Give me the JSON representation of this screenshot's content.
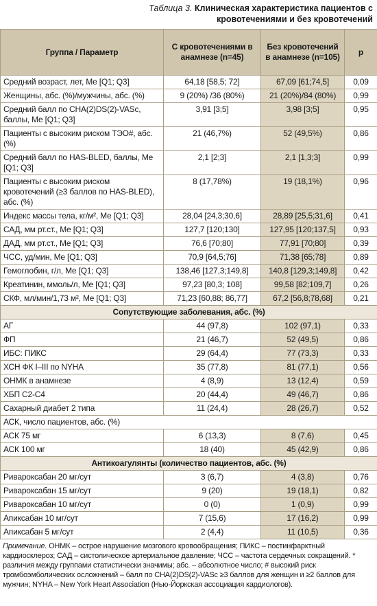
{
  "title": {
    "label": "Таблица 3.",
    "text": "Клиническая характеристика пациентов с кровотечениями и без кровотечений"
  },
  "table": {
    "header": [
      "Группа / Параметр",
      "С кровотечениями в анамнезе (n=45)",
      "Без кровотечений в анамнезе (n=105)",
      "p"
    ],
    "rows": [
      [
        "Средний возраст, лет, Me [Q1; Q3]",
        "64,18 [58,5; 72]",
        "67,09 [61;74,5]",
        "0,09"
      ],
      [
        "Женщины, абс. (%)/мужчины, абс. (%)",
        "9 (20%) /36 (80%)",
        "21 (20%)/84 (80%)",
        "0,99"
      ],
      [
        "Средний балл по CHA(2)DS(2)-VASc, баллы, Me [Q1; Q3]",
        "3,91 [3;5]",
        "3,98 [3;5]",
        "0,95"
      ],
      [
        "Пациенты с высоким риском ТЭО#, абс. (%)",
        "21 (46,7%)",
        "52 (49,5%)",
        "0,86"
      ],
      [
        "Средний балл по HAS-BLED, баллы, Me [Q1; Q3]",
        "2,1 [2;3]",
        "2,1 [1,3;3]",
        "0,99"
      ],
      [
        "Пациенты с высоким риском кровотечений (≥3 баллов по HAS-BLED), абс. (%)",
        "8 (17,78%)",
        "19 (18,1%)",
        "0,96"
      ],
      [
        "Индекс массы тела, кг/м², Me [Q1; Q3]",
        "28,04 [24,3;30,6]",
        "28,89 [25,5;31,6]",
        "0,41"
      ],
      [
        "САД, мм рт.ст., Me [Q1; Q3]",
        "127,7 [120;130]",
        "127,95 [120;137,5]",
        "0,93"
      ],
      [
        "ДАД, мм рт.ст., Me [Q1; Q3]",
        "76,6 [70;80]",
        "77,91 [70;80]",
        "0,39"
      ],
      [
        "ЧСС, уд/мин, Me [Q1; Q3]",
        "70,9 [64,5;76]",
        "71,38 [65;78]",
        "0,89"
      ],
      [
        "Гемоглобин, г/л, Me [Q1; Q3]",
        "138,46 [127,3;149,8]",
        "140,8 [129,3;149,8]",
        "0,42"
      ],
      [
        "Креатинин, ммоль/л, Me [Q1; Q3]",
        "97,23 [80,3; 108]",
        "99,58 [82;109,7]",
        "0,26"
      ],
      [
        "СКФ, мл/мин/1,73 м², Me [Q1; Q3]",
        "71,23 [60,88; 86,77]",
        "67,2 [56,8;78,68]",
        "0,21"
      ],
      {
        "heading": "Сопутствующие заболевания, абс. (%)"
      },
      [
        "АГ",
        "44 (97,8)",
        "102 (97,1)",
        "0,33"
      ],
      [
        "ФП",
        "21 (46,7)",
        "52 (49,5)",
        "0,86"
      ],
      [
        "ИБС: ПИКС",
        "29 (64,4)",
        "77 (73,3)",
        "0,33"
      ],
      [
        "ХСН ФК I–III по NYHA",
        "35 (77,8)",
        "81 (77,1)",
        "0,56"
      ],
      [
        "ОНМК в анамнезе",
        "4 (8,9)",
        "13 (12,4)",
        "0,59"
      ],
      [
        "ХБП С2-С4",
        "20 (44,4)",
        "49 (46,7)",
        "0,86"
      ],
      [
        "Сахарный диабет 2 типа",
        "11 (24,4)",
        "28 (26,7)",
        "0,52"
      ],
      [
        "АСК, число пациентов, абс. (%)"
      ],
      [
        "АСК 75 мг",
        "6 (13,3)",
        "8 (7,6)",
        "0,45"
      ],
      [
        "АСК 100 мг",
        "18 (40)",
        "45 (42,9)",
        "0,86"
      ],
      {
        "heading": "Антикоагулянты (количество пациентов, абс. (%)"
      },
      [
        "Ривароксабан 20 мг/сут",
        "3 (6,7)",
        "4 (3,8)",
        "0,76"
      ],
      [
        "Ривароксабан 15 мг/сут",
        "9 (20)",
        "19 (18,1)",
        "0,82"
      ],
      [
        "Ривароксабан 10 мг/сут",
        "0 (0)",
        "1 (0,9)",
        "0,99"
      ],
      [
        "Апиксабан 10 мг/сут",
        "7 (15,6)",
        "17 (16,2)",
        "0,99"
      ],
      [
        "Апиксабан 5 мг/сут",
        "2 (4,4)",
        "11 (10,5)",
        "0,36"
      ]
    ]
  },
  "note": {
    "label": "Примечание.",
    "text": "ОНМК – острое нарушение мозгового кровообращения; ПИКС – постинфарктный кардиосклероз; САД – систолическое артериальное давление; ЧСС – частота сердечных сокращений. * различия между группами статистически значимы; абс. – абсолютное число; # высокий риск тромбоэмболических осложнений – балл по CHA(2)DS(2)-VASc ≥3 баллов для женщин и ≥2 баллов для мужчин; NYHA – New York Heart Association (Нью-Йоркская ассоциация кардиологов)."
  }
}
